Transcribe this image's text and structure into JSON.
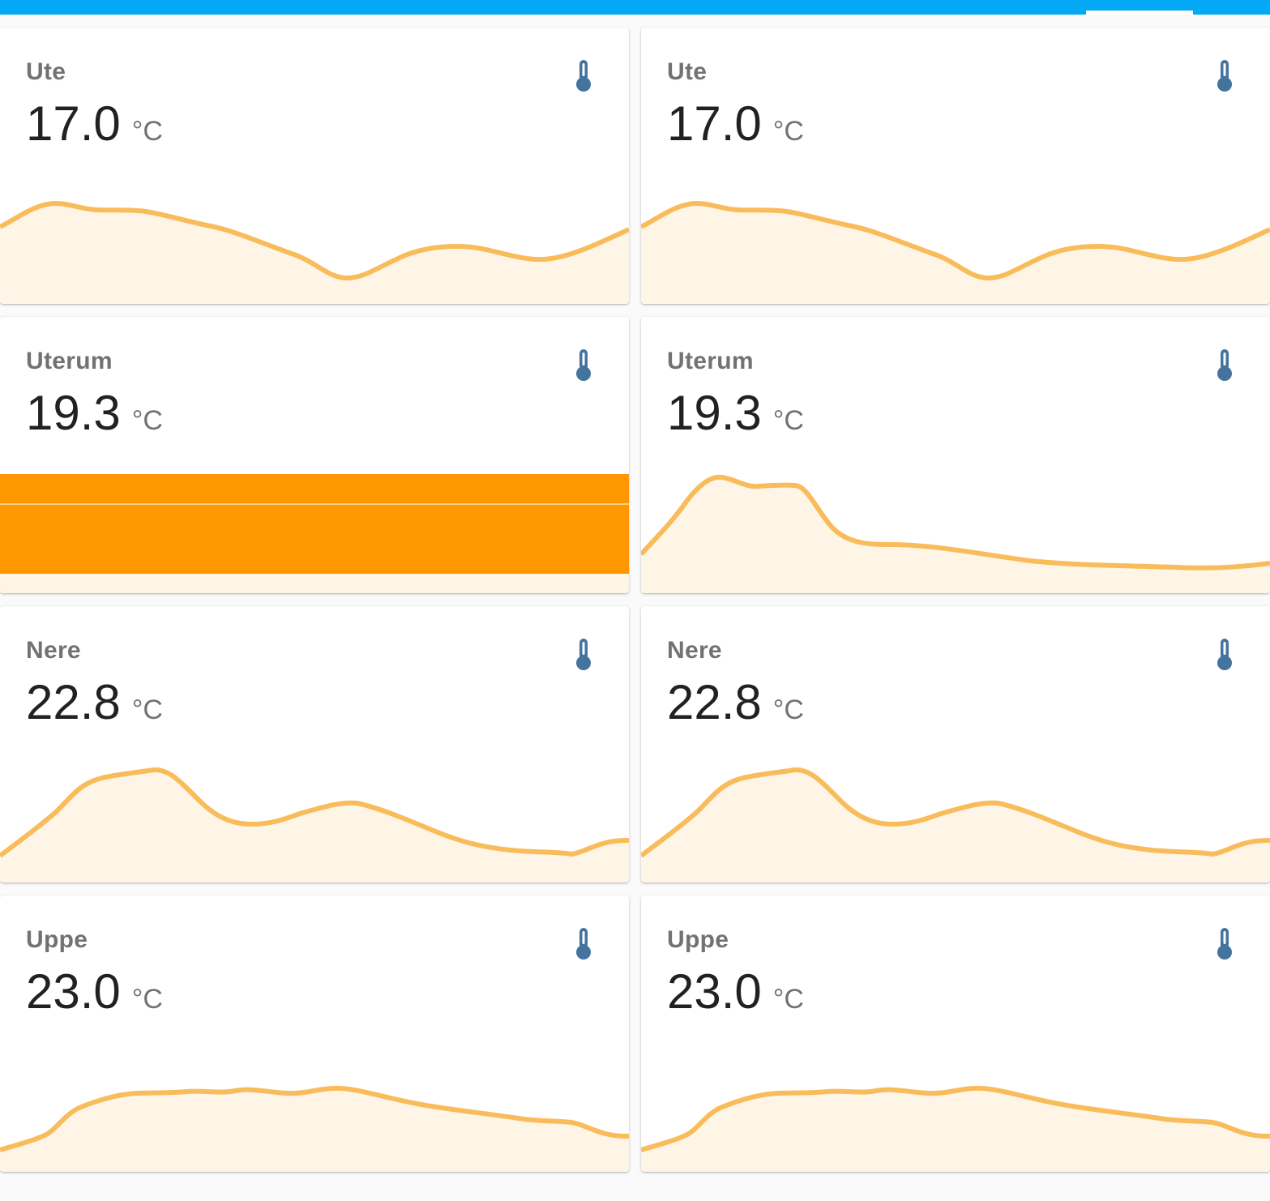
{
  "colors": {
    "header": "#03a9f4",
    "line": "#f9bc5b",
    "fill": "#fef5e7",
    "icon": "#44739e",
    "bar": "#ff9800"
  },
  "cards": [
    {
      "name": "Ute",
      "value": "17.0",
      "unit": "°C",
      "icon": "thermometer-icon"
    },
    {
      "name": "Ute",
      "value": "17.0",
      "unit": "°C",
      "icon": "thermometer-icon"
    },
    {
      "name": "Uterum",
      "value": "19.3",
      "unit": "°C",
      "icon": "thermometer-icon"
    },
    {
      "name": "Uterum",
      "value": "19.3",
      "unit": "°C",
      "icon": "thermometer-icon"
    },
    {
      "name": "Nere",
      "value": "22.8",
      "unit": "°C",
      "icon": "thermometer-icon"
    },
    {
      "name": "Nere",
      "value": "22.8",
      "unit": "°C",
      "icon": "thermometer-icon"
    },
    {
      "name": "Uppe",
      "value": "23.0",
      "unit": "°C",
      "icon": "thermometer-icon"
    },
    {
      "name": "Uppe",
      "value": "23.0",
      "unit": "°C",
      "icon": "thermometer-icon"
    }
  ]
}
